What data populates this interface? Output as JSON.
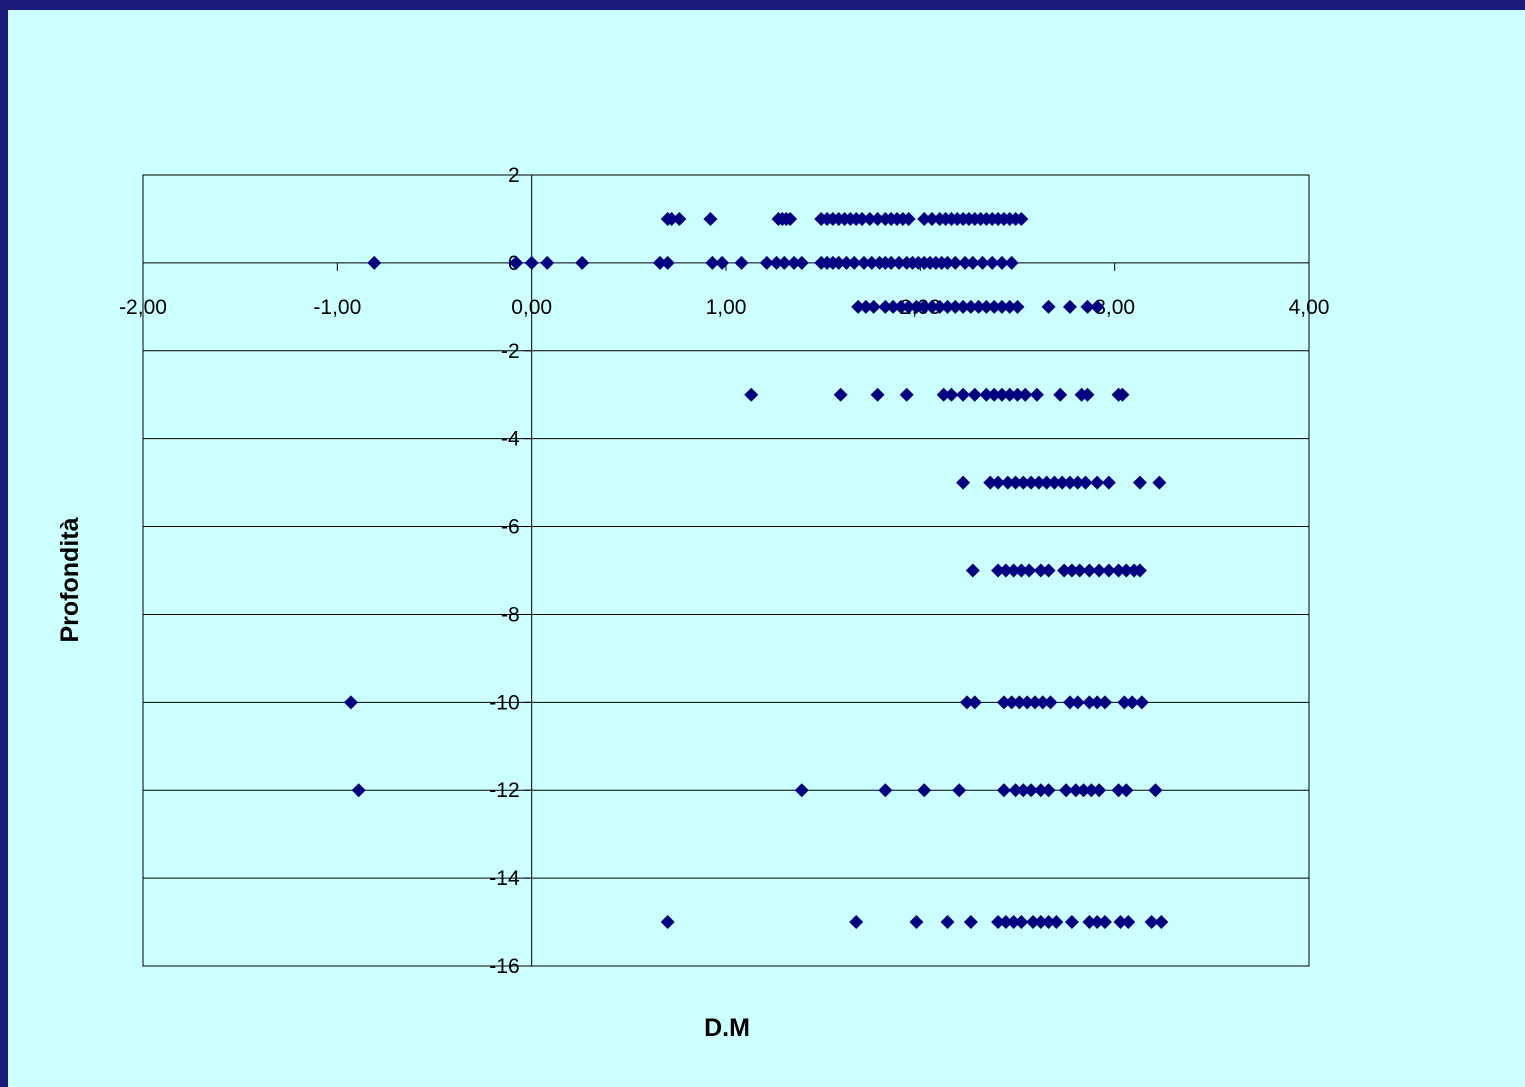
{
  "chart_data": {
    "type": "scatter",
    "title": "",
    "xlabel": "D.M",
    "ylabel": "Profondità",
    "xlim": [
      -2,
      4
    ],
    "ylim": [
      -16,
      2
    ],
    "x_ticks": [
      -2,
      -1,
      0,
      1,
      2,
      3,
      4
    ],
    "x_tick_labels": [
      "-2,00",
      "-1,00",
      "0,00",
      "1,00",
      "2,00",
      "3,00",
      "4,00"
    ],
    "y_ticks": [
      2,
      0,
      -2,
      -4,
      -6,
      -8,
      -10,
      -12,
      -14,
      -16
    ],
    "y_tick_labels": [
      "2",
      "0",
      "-2",
      "-4",
      "-6",
      "-8",
      "-10",
      "-12",
      "-14",
      "-16"
    ],
    "grid": "horizontal",
    "marker": "diamond",
    "colors": {
      "marker": "#000080",
      "grid": "#000000",
      "plot_background": "#ccffff",
      "frame": "#1c1c7a"
    },
    "series": [
      {
        "points": [
          [
            0.7,
            1
          ],
          [
            0.72,
            1
          ],
          [
            0.76,
            1
          ],
          [
            0.92,
            1
          ],
          [
            1.27,
            1
          ],
          [
            1.29,
            1
          ],
          [
            1.31,
            1
          ],
          [
            1.33,
            1
          ],
          [
            1.49,
            1
          ],
          [
            1.52,
            1
          ],
          [
            1.55,
            1
          ],
          [
            1.58,
            1
          ],
          [
            1.61,
            1
          ],
          [
            1.64,
            1
          ],
          [
            1.67,
            1
          ],
          [
            1.7,
            1
          ],
          [
            1.74,
            1
          ],
          [
            1.78,
            1
          ],
          [
            1.82,
            1
          ],
          [
            1.85,
            1
          ],
          [
            1.88,
            1
          ],
          [
            1.91,
            1
          ],
          [
            1.94,
            1
          ],
          [
            2.02,
            1
          ],
          [
            2.06,
            1
          ],
          [
            2.1,
            1
          ],
          [
            2.13,
            1
          ],
          [
            2.16,
            1
          ],
          [
            2.19,
            1
          ],
          [
            2.22,
            1
          ],
          [
            2.25,
            1
          ],
          [
            2.28,
            1
          ],
          [
            2.31,
            1
          ],
          [
            2.34,
            1
          ],
          [
            2.37,
            1
          ],
          [
            2.4,
            1
          ],
          [
            2.43,
            1
          ],
          [
            2.46,
            1
          ],
          [
            2.49,
            1
          ],
          [
            2.52,
            1
          ],
          [
            -0.81,
            0
          ],
          [
            -0.08,
            0
          ],
          [
            0.0,
            0
          ],
          [
            0.08,
            0
          ],
          [
            0.26,
            0
          ],
          [
            0.66,
            0
          ],
          [
            0.7,
            0
          ],
          [
            0.93,
            0
          ],
          [
            0.98,
            0
          ],
          [
            1.08,
            0
          ],
          [
            1.21,
            0
          ],
          [
            1.26,
            0
          ],
          [
            1.3,
            0
          ],
          [
            1.35,
            0
          ],
          [
            1.39,
            0
          ],
          [
            1.49,
            0
          ],
          [
            1.52,
            0
          ],
          [
            1.55,
            0
          ],
          [
            1.58,
            0
          ],
          [
            1.62,
            0
          ],
          [
            1.66,
            0
          ],
          [
            1.71,
            0
          ],
          [
            1.75,
            0
          ],
          [
            1.79,
            0
          ],
          [
            1.82,
            0
          ],
          [
            1.85,
            0
          ],
          [
            1.89,
            0
          ],
          [
            1.93,
            0
          ],
          [
            1.96,
            0
          ],
          [
            1.99,
            0
          ],
          [
            2.02,
            0
          ],
          [
            2.05,
            0
          ],
          [
            2.08,
            0
          ],
          [
            2.11,
            0
          ],
          [
            2.14,
            0
          ],
          [
            2.18,
            0
          ],
          [
            2.23,
            0
          ],
          [
            2.27,
            0
          ],
          [
            2.32,
            0
          ],
          [
            2.37,
            0
          ],
          [
            2.42,
            0
          ],
          [
            2.47,
            0
          ],
          [
            1.68,
            -1
          ],
          [
            1.72,
            -1
          ],
          [
            1.76,
            -1
          ],
          [
            1.82,
            -1
          ],
          [
            1.86,
            -1
          ],
          [
            1.9,
            -1
          ],
          [
            1.94,
            -1
          ],
          [
            1.98,
            -1
          ],
          [
            2.02,
            -1
          ],
          [
            2.06,
            -1
          ],
          [
            2.1,
            -1
          ],
          [
            2.14,
            -1
          ],
          [
            2.18,
            -1
          ],
          [
            2.22,
            -1
          ],
          [
            2.26,
            -1
          ],
          [
            2.3,
            -1
          ],
          [
            2.34,
            -1
          ],
          [
            2.38,
            -1
          ],
          [
            2.42,
            -1
          ],
          [
            2.46,
            -1
          ],
          [
            2.5,
            -1
          ],
          [
            2.66,
            -1
          ],
          [
            2.77,
            -1
          ],
          [
            2.86,
            -1
          ],
          [
            2.91,
            -1
          ],
          [
            1.13,
            -3
          ],
          [
            1.59,
            -3
          ],
          [
            1.78,
            -3
          ],
          [
            1.93,
            -3
          ],
          [
            2.12,
            -3
          ],
          [
            2.16,
            -3
          ],
          [
            2.22,
            -3
          ],
          [
            2.28,
            -3
          ],
          [
            2.34,
            -3
          ],
          [
            2.38,
            -3
          ],
          [
            2.42,
            -3
          ],
          [
            2.46,
            -3
          ],
          [
            2.5,
            -3
          ],
          [
            2.54,
            -3
          ],
          [
            2.6,
            -3
          ],
          [
            2.72,
            -3
          ],
          [
            2.83,
            -3
          ],
          [
            2.86,
            -3
          ],
          [
            3.02,
            -3
          ],
          [
            3.04,
            -3
          ],
          [
            2.22,
            -5
          ],
          [
            2.36,
            -5
          ],
          [
            2.4,
            -5
          ],
          [
            2.45,
            -5
          ],
          [
            2.49,
            -5
          ],
          [
            2.53,
            -5
          ],
          [
            2.57,
            -5
          ],
          [
            2.61,
            -5
          ],
          [
            2.65,
            -5
          ],
          [
            2.69,
            -5
          ],
          [
            2.73,
            -5
          ],
          [
            2.77,
            -5
          ],
          [
            2.81,
            -5
          ],
          [
            2.85,
            -5
          ],
          [
            2.91,
            -5
          ],
          [
            2.97,
            -5
          ],
          [
            3.13,
            -5
          ],
          [
            3.23,
            -5
          ],
          [
            2.27,
            -7
          ],
          [
            2.4,
            -7
          ],
          [
            2.44,
            -7
          ],
          [
            2.48,
            -7
          ],
          [
            2.52,
            -7
          ],
          [
            2.56,
            -7
          ],
          [
            2.62,
            -7
          ],
          [
            2.66,
            -7
          ],
          [
            2.74,
            -7
          ],
          [
            2.78,
            -7
          ],
          [
            2.82,
            -7
          ],
          [
            2.87,
            -7
          ],
          [
            2.92,
            -7
          ],
          [
            2.97,
            -7
          ],
          [
            3.02,
            -7
          ],
          [
            3.06,
            -7
          ],
          [
            3.1,
            -7
          ],
          [
            3.13,
            -7
          ],
          [
            -0.93,
            -10
          ],
          [
            2.24,
            -10
          ],
          [
            2.28,
            -10
          ],
          [
            2.43,
            -10
          ],
          [
            2.47,
            -10
          ],
          [
            2.51,
            -10
          ],
          [
            2.55,
            -10
          ],
          [
            2.59,
            -10
          ],
          [
            2.63,
            -10
          ],
          [
            2.67,
            -10
          ],
          [
            2.77,
            -10
          ],
          [
            2.81,
            -10
          ],
          [
            2.87,
            -10
          ],
          [
            2.91,
            -10
          ],
          [
            2.95,
            -10
          ],
          [
            3.05,
            -10
          ],
          [
            3.09,
            -10
          ],
          [
            3.14,
            -10
          ],
          [
            -0.89,
            -12
          ],
          [
            1.39,
            -12
          ],
          [
            1.82,
            -12
          ],
          [
            2.02,
            -12
          ],
          [
            2.2,
            -12
          ],
          [
            2.43,
            -12
          ],
          [
            2.49,
            -12
          ],
          [
            2.53,
            -12
          ],
          [
            2.57,
            -12
          ],
          [
            2.62,
            -12
          ],
          [
            2.66,
            -12
          ],
          [
            2.75,
            -12
          ],
          [
            2.8,
            -12
          ],
          [
            2.84,
            -12
          ],
          [
            2.88,
            -12
          ],
          [
            2.92,
            -12
          ],
          [
            3.02,
            -12
          ],
          [
            3.06,
            -12
          ],
          [
            3.21,
            -12
          ],
          [
            0.7,
            -15
          ],
          [
            1.67,
            -15
          ],
          [
            1.98,
            -15
          ],
          [
            2.14,
            -15
          ],
          [
            2.26,
            -15
          ],
          [
            2.4,
            -15
          ],
          [
            2.44,
            -15
          ],
          [
            2.48,
            -15
          ],
          [
            2.52,
            -15
          ],
          [
            2.58,
            -15
          ],
          [
            2.62,
            -15
          ],
          [
            2.66,
            -15
          ],
          [
            2.7,
            -15
          ],
          [
            2.78,
            -15
          ],
          [
            2.87,
            -15
          ],
          [
            2.91,
            -15
          ],
          [
            2.95,
            -15
          ],
          [
            3.03,
            -15
          ],
          [
            3.07,
            -15
          ],
          [
            3.19,
            -15
          ],
          [
            3.24,
            -15
          ]
        ]
      }
    ]
  }
}
